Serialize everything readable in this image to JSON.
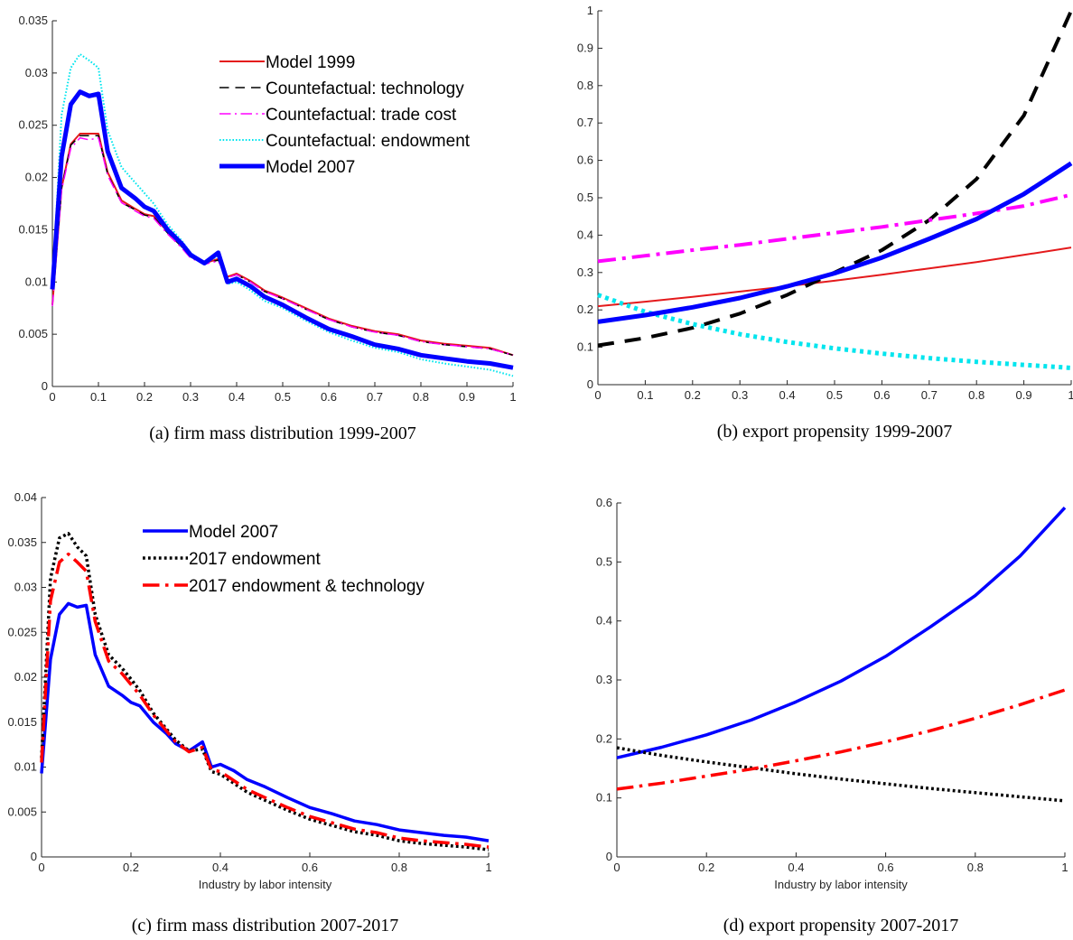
{
  "chart_data": [
    {
      "id": "a",
      "type": "line",
      "caption": "(a) firm mass distribution 1999-2007",
      "xlabel": "",
      "ylabel": "",
      "xlim": [
        0,
        1
      ],
      "ylim": [
        0,
        0.035
      ],
      "xticks": [
        "0",
        "0.1",
        "0.2",
        "0.3",
        "0.4",
        "0.5",
        "0.6",
        "0.7",
        "0.8",
        "0.9",
        "1"
      ],
      "yticks": [
        "0",
        "0.005",
        "0.01",
        "0.015",
        "0.02",
        "0.025",
        "0.03",
        "0.035"
      ],
      "grid": false,
      "legend": "top-right",
      "series": [
        {
          "name": "Model 1999",
          "color": "#e41a1c",
          "style": "solid",
          "width": 2,
          "x": [
            0,
            0.02,
            0.04,
            0.06,
            0.08,
            0.1,
            0.12,
            0.15,
            0.18,
            0.2,
            0.22,
            0.25,
            0.28,
            0.3,
            0.33,
            0.36,
            0.38,
            0.4,
            0.43,
            0.46,
            0.5,
            0.55,
            0.6,
            0.65,
            0.7,
            0.75,
            0.8,
            0.85,
            0.9,
            0.95,
            1.0
          ],
          "y": [
            0.0078,
            0.019,
            0.0232,
            0.0242,
            0.0242,
            0.0242,
            0.0205,
            0.0178,
            0.017,
            0.0165,
            0.0163,
            0.0148,
            0.0135,
            0.0125,
            0.0118,
            0.0122,
            0.0105,
            0.0108,
            0.0101,
            0.0092,
            0.0085,
            0.0075,
            0.0065,
            0.0058,
            0.0053,
            0.005,
            0.0044,
            0.0041,
            0.0039,
            0.0037,
            0.003
          ]
        },
        {
          "name": "Countefactual: technology",
          "color": "#000000",
          "style": "dashed",
          "width": 1.5,
          "x": [
            0,
            0.02,
            0.04,
            0.06,
            0.08,
            0.1,
            0.12,
            0.15,
            0.18,
            0.2,
            0.22,
            0.25,
            0.28,
            0.3,
            0.33,
            0.36,
            0.38,
            0.4,
            0.43,
            0.46,
            0.5,
            0.55,
            0.6,
            0.65,
            0.7,
            0.75,
            0.8,
            0.85,
            0.9,
            0.95,
            1.0
          ],
          "y": [
            0.0078,
            0.019,
            0.0231,
            0.024,
            0.024,
            0.024,
            0.0203,
            0.0176,
            0.0169,
            0.0164,
            0.0162,
            0.0147,
            0.0134,
            0.0124,
            0.0117,
            0.0121,
            0.0104,
            0.0107,
            0.01,
            0.0091,
            0.0084,
            0.0074,
            0.0064,
            0.0057,
            0.0052,
            0.0049,
            0.0043,
            0.004,
            0.0038,
            0.0036,
            0.003
          ]
        },
        {
          "name": "Countefactual: trade cost",
          "color": "#ff00ff",
          "style": "dashdot",
          "width": 1.5,
          "x": [
            0,
            0.02,
            0.04,
            0.06,
            0.08,
            0.1,
            0.12,
            0.15,
            0.18,
            0.2,
            0.22,
            0.25,
            0.28,
            0.3,
            0.33,
            0.36,
            0.38,
            0.4,
            0.43,
            0.46,
            0.5,
            0.55,
            0.6,
            0.65,
            0.7,
            0.75,
            0.8,
            0.85,
            0.9,
            0.95,
            1.0
          ],
          "y": [
            0.0077,
            0.0188,
            0.0228,
            0.0238,
            0.0236,
            0.0238,
            0.0202,
            0.0176,
            0.0168,
            0.0163,
            0.0161,
            0.0146,
            0.0133,
            0.0123,
            0.0117,
            0.012,
            0.0104,
            0.0107,
            0.01,
            0.0091,
            0.0084,
            0.0074,
            0.0064,
            0.0057,
            0.0052,
            0.0049,
            0.0043,
            0.004,
            0.0038,
            0.0036,
            0.003
          ]
        },
        {
          "name": "Countefactual: endowment",
          "color": "#00e5ee",
          "style": "dotted",
          "width": 2,
          "x": [
            0,
            0.02,
            0.04,
            0.06,
            0.08,
            0.1,
            0.12,
            0.15,
            0.18,
            0.2,
            0.22,
            0.25,
            0.28,
            0.3,
            0.33,
            0.36,
            0.38,
            0.4,
            0.43,
            0.46,
            0.5,
            0.55,
            0.6,
            0.65,
            0.7,
            0.75,
            0.8,
            0.85,
            0.9,
            0.95,
            1.0
          ],
          "y": [
            0.0095,
            0.026,
            0.0305,
            0.0318,
            0.0312,
            0.0305,
            0.0245,
            0.021,
            0.0195,
            0.0185,
            0.0175,
            0.0155,
            0.014,
            0.0128,
            0.0118,
            0.0125,
            0.0098,
            0.01,
            0.0092,
            0.0082,
            0.0075,
            0.0063,
            0.0052,
            0.0044,
            0.0037,
            0.0033,
            0.0026,
            0.0022,
            0.0019,
            0.0016,
            0.001
          ]
        },
        {
          "name": "Model 2007",
          "color": "#0000ff",
          "style": "solid",
          "width": 5,
          "x": [
            0,
            0.02,
            0.04,
            0.06,
            0.08,
            0.1,
            0.12,
            0.15,
            0.18,
            0.2,
            0.22,
            0.25,
            0.28,
            0.3,
            0.33,
            0.36,
            0.38,
            0.4,
            0.43,
            0.46,
            0.5,
            0.55,
            0.6,
            0.65,
            0.7,
            0.75,
            0.8,
            0.85,
            0.9,
            0.95,
            1.0
          ],
          "y": [
            0.0093,
            0.022,
            0.027,
            0.0282,
            0.0278,
            0.028,
            0.0225,
            0.019,
            0.018,
            0.0172,
            0.0168,
            0.015,
            0.0137,
            0.0126,
            0.0118,
            0.0128,
            0.01,
            0.0103,
            0.0096,
            0.0086,
            0.0078,
            0.0066,
            0.0055,
            0.0048,
            0.004,
            0.0036,
            0.003,
            0.0027,
            0.0024,
            0.0022,
            0.0018
          ]
        }
      ]
    },
    {
      "id": "b",
      "type": "line",
      "caption": "(b) export propensity 1999-2007",
      "xlabel": "",
      "ylabel": "",
      "xlim": [
        0,
        1
      ],
      "ylim": [
        0,
        1
      ],
      "xticks": [
        "0",
        "0.1",
        "0.2",
        "0.3",
        "0.4",
        "0.5",
        "0.6",
        "0.7",
        "0.8",
        "0.9",
        "1"
      ],
      "yticks": [
        "0",
        "0.1",
        "0.2",
        "0.3",
        "0.4",
        "0.5",
        "0.6",
        "0.7",
        "0.8",
        "0.9",
        "1"
      ],
      "grid": false,
      "legend": "none",
      "series": [
        {
          "color": "#e41a1c",
          "style": "solid",
          "width": 2,
          "x": [
            0,
            0.1,
            0.2,
            0.3,
            0.4,
            0.5,
            0.6,
            0.7,
            0.8,
            0.9,
            1.0
          ],
          "y": [
            0.21,
            0.222,
            0.235,
            0.249,
            0.263,
            0.278,
            0.294,
            0.311,
            0.328,
            0.347,
            0.367
          ]
        },
        {
          "color": "#000000",
          "style": "dashed",
          "width": 4,
          "x": [
            0,
            0.1,
            0.2,
            0.3,
            0.4,
            0.5,
            0.6,
            0.7,
            0.8,
            0.9,
            1.0
          ],
          "y": [
            0.105,
            0.125,
            0.152,
            0.19,
            0.24,
            0.3,
            0.36,
            0.44,
            0.55,
            0.72,
            1.0
          ]
        },
        {
          "color": "#ff00ff",
          "style": "dashdot",
          "width": 4,
          "x": [
            0,
            0.1,
            0.2,
            0.3,
            0.4,
            0.5,
            0.6,
            0.7,
            0.8,
            0.9,
            1.0
          ],
          "y": [
            0.33,
            0.345,
            0.36,
            0.374,
            0.39,
            0.406,
            0.422,
            0.44,
            0.458,
            0.478,
            0.508
          ]
        },
        {
          "color": "#00e5ee",
          "style": "dotted",
          "width": 5,
          "x": [
            0,
            0.1,
            0.2,
            0.3,
            0.4,
            0.5,
            0.6,
            0.7,
            0.8,
            0.9,
            1.0
          ],
          "y": [
            0.24,
            0.195,
            0.162,
            0.135,
            0.114,
            0.097,
            0.083,
            0.071,
            0.061,
            0.053,
            0.045
          ]
        },
        {
          "color": "#0000ff",
          "style": "solid",
          "width": 5,
          "x": [
            0,
            0.1,
            0.2,
            0.3,
            0.4,
            0.5,
            0.6,
            0.7,
            0.8,
            0.9,
            1.0
          ],
          "y": [
            0.168,
            0.186,
            0.207,
            0.232,
            0.263,
            0.298,
            0.34,
            0.39,
            0.443,
            0.51,
            0.592
          ]
        }
      ]
    },
    {
      "id": "c",
      "type": "line",
      "caption": "(c) firm mass distribution 2007-2017",
      "xlabel": "Industry by labor intensity",
      "ylabel": "",
      "xlim": [
        0,
        1
      ],
      "ylim": [
        0,
        0.04
      ],
      "xticks": [
        "0",
        "0.2",
        "0.4",
        "0.6",
        "0.8",
        "1"
      ],
      "yticks": [
        "0",
        "0.005",
        "0.01",
        "0.015",
        "0.02",
        "0.025",
        "0.03",
        "0.035",
        "0.04"
      ],
      "grid": false,
      "legend": "top-right",
      "series": [
        {
          "name": "Model 2007",
          "color": "#0000ff",
          "style": "solid",
          "width": 3.5,
          "x": [
            0,
            0.02,
            0.04,
            0.06,
            0.08,
            0.1,
            0.12,
            0.15,
            0.18,
            0.2,
            0.22,
            0.25,
            0.28,
            0.3,
            0.33,
            0.36,
            0.38,
            0.4,
            0.43,
            0.46,
            0.5,
            0.55,
            0.6,
            0.65,
            0.7,
            0.75,
            0.8,
            0.85,
            0.9,
            0.95,
            1.0
          ],
          "y": [
            0.0093,
            0.022,
            0.027,
            0.0282,
            0.0278,
            0.028,
            0.0225,
            0.019,
            0.018,
            0.0172,
            0.0168,
            0.015,
            0.0137,
            0.0126,
            0.0118,
            0.0128,
            0.01,
            0.0103,
            0.0096,
            0.0086,
            0.0078,
            0.0066,
            0.0055,
            0.0048,
            0.004,
            0.0036,
            0.003,
            0.0027,
            0.0024,
            0.0022,
            0.0018
          ]
        },
        {
          "name": "2017 endowment",
          "color": "#000000",
          "style": "dotted",
          "width": 3.5,
          "x": [
            0,
            0.02,
            0.04,
            0.06,
            0.08,
            0.1,
            0.12,
            0.15,
            0.18,
            0.2,
            0.22,
            0.25,
            0.28,
            0.3,
            0.33,
            0.36,
            0.38,
            0.4,
            0.43,
            0.46,
            0.5,
            0.55,
            0.6,
            0.65,
            0.7,
            0.75,
            0.8,
            0.85,
            0.9,
            0.95,
            1.0
          ],
          "y": [
            0.011,
            0.031,
            0.0355,
            0.036,
            0.0345,
            0.0335,
            0.027,
            0.0225,
            0.021,
            0.0198,
            0.0185,
            0.016,
            0.0142,
            0.013,
            0.0118,
            0.012,
            0.0095,
            0.0092,
            0.0082,
            0.0072,
            0.0063,
            0.0052,
            0.0042,
            0.0035,
            0.0028,
            0.0024,
            0.0018,
            0.0015,
            0.0013,
            0.0011,
            0.0008
          ]
        },
        {
          "name": "2017 endowment & technology",
          "color": "#ff0000",
          "style": "dashdot",
          "width": 3.5,
          "x": [
            0,
            0.02,
            0.04,
            0.06,
            0.08,
            0.1,
            0.12,
            0.15,
            0.18,
            0.2,
            0.22,
            0.25,
            0.28,
            0.3,
            0.33,
            0.36,
            0.38,
            0.4,
            0.43,
            0.46,
            0.5,
            0.55,
            0.6,
            0.65,
            0.7,
            0.75,
            0.8,
            0.85,
            0.9,
            0.95,
            1.0
          ],
          "y": [
            0.0105,
            0.0285,
            0.0328,
            0.0337,
            0.0328,
            0.0318,
            0.0262,
            0.0218,
            0.0204,
            0.0192,
            0.018,
            0.0158,
            0.014,
            0.0128,
            0.0117,
            0.0122,
            0.0097,
            0.0095,
            0.0085,
            0.0075,
            0.0066,
            0.0055,
            0.0045,
            0.0038,
            0.0031,
            0.0027,
            0.0021,
            0.0018,
            0.0016,
            0.0014,
            0.0011
          ]
        }
      ]
    },
    {
      "id": "d",
      "type": "line",
      "caption": "(d) export propensity 2007-2017",
      "xlabel": "Industry by labor intensity",
      "ylabel": "",
      "xlim": [
        0,
        1
      ],
      "ylim": [
        0,
        0.6
      ],
      "xticks": [
        "0",
        "0.2",
        "0.4",
        "0.6",
        "0.8",
        "1"
      ],
      "yticks": [
        "0",
        "0.1",
        "0.2",
        "0.3",
        "0.4",
        "0.5",
        "0.6"
      ],
      "grid": false,
      "legend": "none",
      "series": [
        {
          "color": "#0000ff",
          "style": "solid",
          "width": 3.5,
          "x": [
            0,
            0.1,
            0.2,
            0.3,
            0.4,
            0.5,
            0.6,
            0.7,
            0.8,
            0.9,
            1.0
          ],
          "y": [
            0.168,
            0.186,
            0.207,
            0.232,
            0.263,
            0.298,
            0.34,
            0.39,
            0.443,
            0.51,
            0.592
          ]
        },
        {
          "color": "#000000",
          "style": "dotted",
          "width": 3.5,
          "x": [
            0,
            0.1,
            0.2,
            0.3,
            0.4,
            0.5,
            0.6,
            0.7,
            0.8,
            0.9,
            1.0
          ],
          "y": [
            0.185,
            0.172,
            0.161,
            0.151,
            0.141,
            0.132,
            0.124,
            0.116,
            0.109,
            0.102,
            0.095
          ]
        },
        {
          "color": "#ff0000",
          "style": "dashdot",
          "width": 3.5,
          "x": [
            0,
            0.1,
            0.2,
            0.3,
            0.4,
            0.5,
            0.6,
            0.7,
            0.8,
            0.9,
            1.0
          ],
          "y": [
            0.115,
            0.125,
            0.137,
            0.149,
            0.163,
            0.178,
            0.195,
            0.214,
            0.235,
            0.258,
            0.283
          ]
        }
      ]
    }
  ]
}
